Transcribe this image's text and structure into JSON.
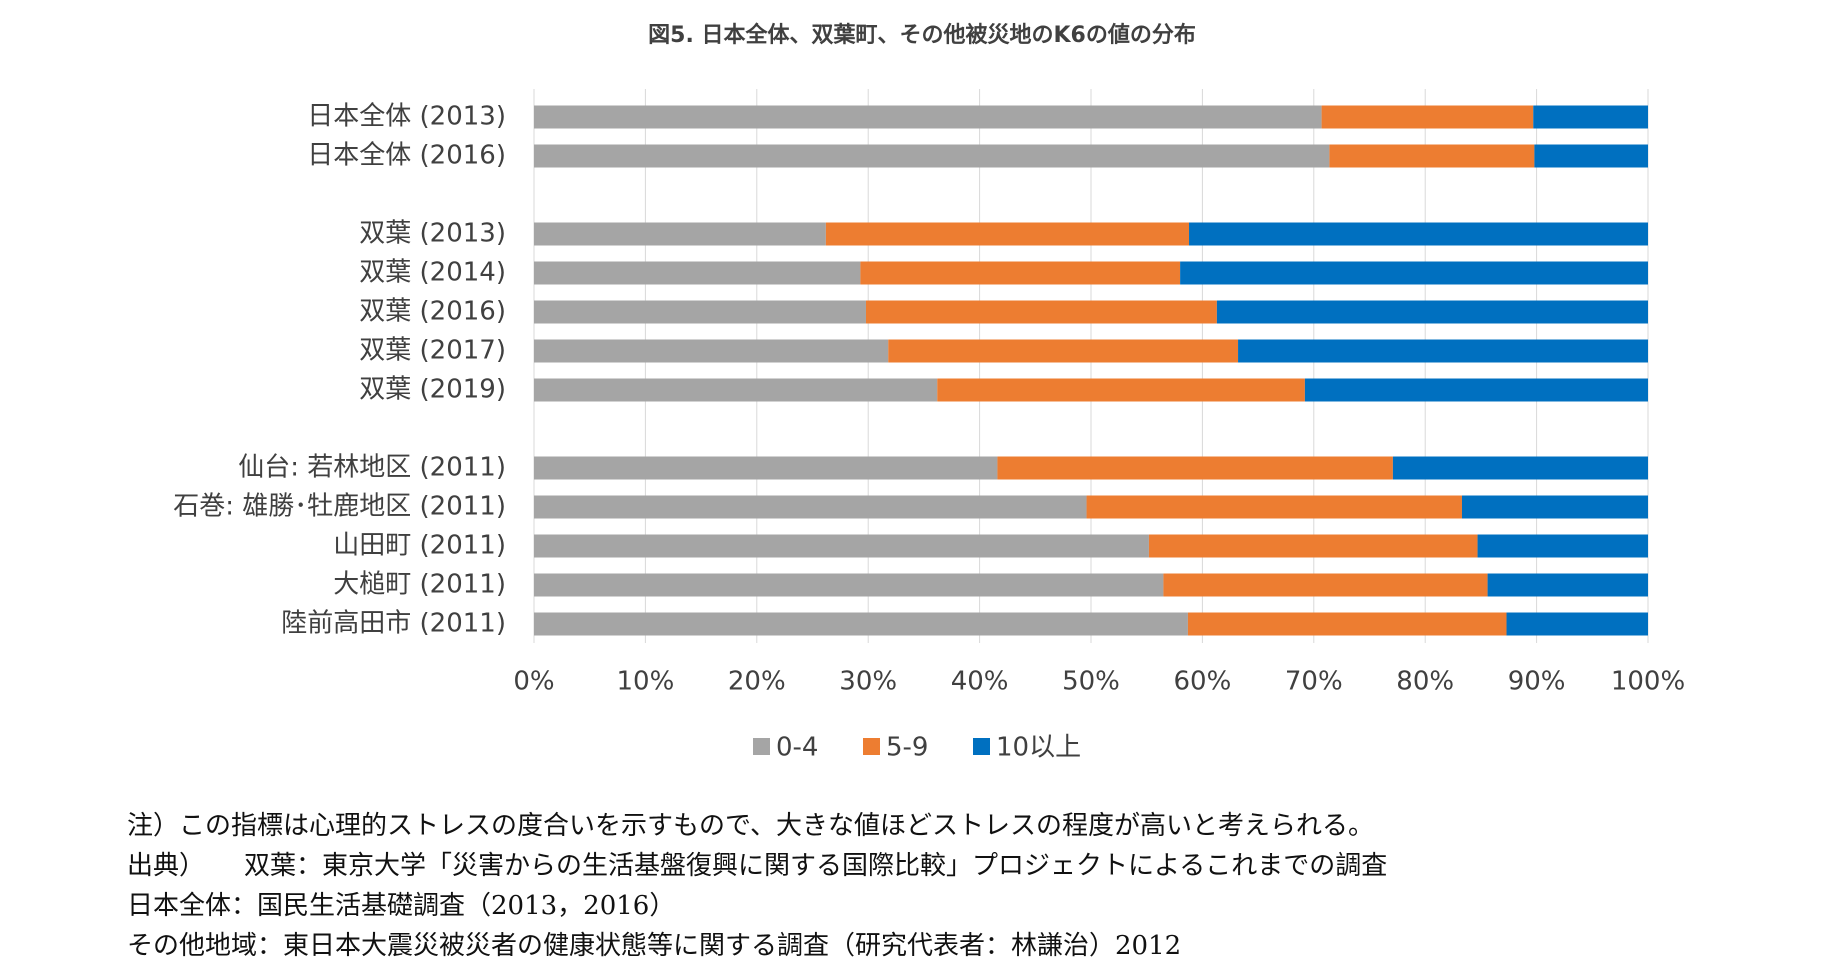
{
  "chart_data": {
    "type": "stacked-barh",
    "title": "図5. 日本全体、双葉町、その他被災地のK6の値の分布",
    "categories": [
      "日本全体 (2013)",
      "日本全体 (2016)",
      null,
      "双葉 (2013)",
      "双葉 (2014)",
      "双葉 (2016)",
      "双葉 (2017)",
      "双葉 (2019)",
      null,
      "仙台: 若林地区 (2011)",
      "石巻: 雄勝･牡鹿地区 (2011)",
      "山田町 (2011)",
      "大槌町 (2011)",
      "陸前高田市 (2011)"
    ],
    "series": [
      {
        "name": "0-4",
        "color": "#a5a5a5",
        "values": [
          70.7,
          71.4,
          null,
          26.2,
          29.3,
          29.8,
          31.8,
          36.2,
          null,
          41.6,
          49.6,
          55.2,
          56.5,
          58.7
        ]
      },
      {
        "name": "5-9",
        "color": "#ed7d31",
        "values": [
          19.0,
          18.4,
          null,
          32.6,
          28.7,
          31.5,
          31.4,
          33.0,
          null,
          35.5,
          33.7,
          29.5,
          29.1,
          28.6
        ]
      },
      {
        "name": "10以上",
        "color": "#0070c0",
        "values": [
          10.3,
          10.2,
          null,
          41.2,
          42.0,
          38.7,
          36.8,
          30.8,
          null,
          22.9,
          16.7,
          15.3,
          14.4,
          12.7
        ]
      }
    ],
    "xlim": [
      0,
      100
    ],
    "xticks": [
      {
        "value": 0,
        "label": "0%"
      },
      {
        "value": 10,
        "label": "10%"
      },
      {
        "value": 20,
        "label": "20%"
      },
      {
        "value": 30,
        "label": "30%"
      },
      {
        "value": 40,
        "label": "40%"
      },
      {
        "value": 50,
        "label": "50%"
      },
      {
        "value": 60,
        "label": "60%"
      },
      {
        "value": 70,
        "label": "70%"
      },
      {
        "value": 80,
        "label": "80%"
      },
      {
        "value": 90,
        "label": "90%"
      },
      {
        "value": 100,
        "label": "100%"
      }
    ],
    "grid": true,
    "legend": "bottom"
  },
  "notes": [
    "注）この指標は心理的ストレスの度合いを示すもので、大きな値ほどストレスの程度が高いと考えられる。",
    "出典）　　双葉：東京大学「災害からの生活基盤復興に関する国際比較」プロジェクトによるこれまでの調査",
    "日本全体：国民生活基礎調査（2013，2016）",
    "その他地域：東日本大震災被災者の健康状態等に関する調査（研究代表者：林謙治）2012"
  ]
}
